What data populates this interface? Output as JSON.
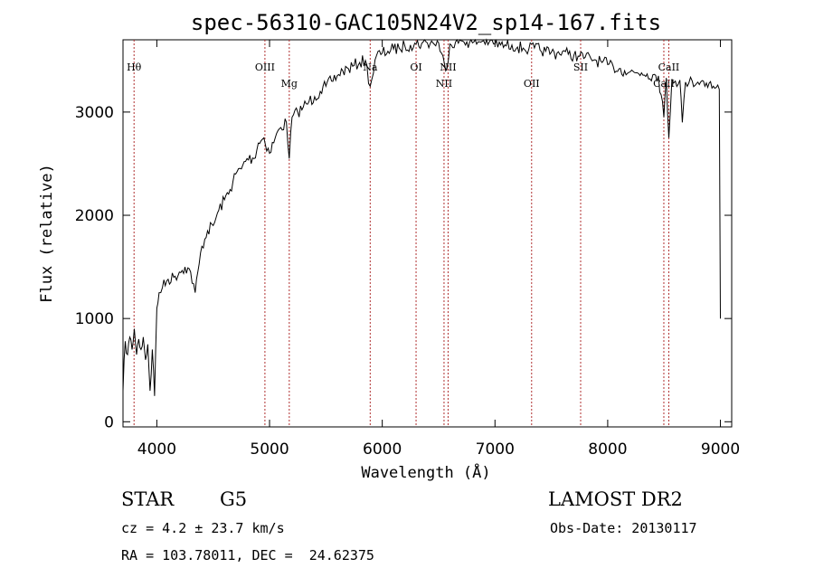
{
  "chart_data": {
    "type": "line",
    "title": "spec-56310-GAC105N24V2_sp14-167.fits",
    "xlabel": "Wavelength (Å)",
    "ylabel": "Flux (relative)",
    "xlim": [
      3700,
      9100
    ],
    "ylim": [
      -50,
      3700
    ],
    "x_ticks": [
      4000,
      5000,
      6000,
      7000,
      8000,
      9000
    ],
    "y_ticks": [
      0,
      1000,
      2000,
      3000
    ],
    "grid": false,
    "series": [
      {
        "color": "#000000",
        "x": [
          3700,
          3720,
          3740,
          3760,
          3780,
          3800,
          3820,
          3840,
          3860,
          3880,
          3900,
          3920,
          3940,
          3960,
          3980,
          4000,
          4020,
          4050,
          4100,
          4150,
          4200,
          4250,
          4300,
          4340,
          4400,
          4450,
          4500,
          4550,
          4600,
          4650,
          4700,
          4750,
          4800,
          4862,
          4900,
          4950,
          5000,
          5050,
          5100,
          5150,
          5175,
          5200,
          5250,
          5300,
          5350,
          5400,
          5450,
          5500,
          5550,
          5600,
          5650,
          5700,
          5750,
          5800,
          5850,
          5893,
          5950,
          6000,
          6050,
          6100,
          6150,
          6200,
          6250,
          6300,
          6350,
          6400,
          6450,
          6500,
          6563,
          6600,
          6650,
          6700,
          6750,
          6800,
          6850,
          6900,
          6950,
          7000,
          7050,
          7100,
          7150,
          7200,
          7250,
          7300,
          7350,
          7400,
          7450,
          7500,
          7550,
          7600,
          7650,
          7700,
          7750,
          7800,
          7850,
          7900,
          7950,
          8000,
          8050,
          8100,
          8150,
          8200,
          8250,
          8300,
          8350,
          8400,
          8450,
          8498,
          8520,
          8542,
          8570,
          8600,
          8640,
          8662,
          8690,
          8720,
          8750,
          8800,
          8850,
          8900,
          8950,
          8990,
          9000
        ],
        "y": [
          300,
          780,
          650,
          820,
          700,
          900,
          650,
          800,
          700,
          820,
          600,
          750,
          300,
          700,
          250,
          1100,
          1250,
          1300,
          1380,
          1400,
          1450,
          1500,
          1450,
          1250,
          1700,
          1850,
          1900,
          2050,
          2150,
          2250,
          2400,
          2450,
          2550,
          2550,
          2700,
          2750,
          2600,
          2750,
          2850,
          2900,
          2550,
          2950,
          3000,
          3050,
          3100,
          3150,
          3200,
          3250,
          3300,
          3350,
          3400,
          3420,
          3450,
          3480,
          3500,
          3250,
          3550,
          3570,
          3590,
          3610,
          3620,
          3640,
          3650,
          3660,
          3665,
          3670,
          3670,
          3670,
          3400,
          3660,
          3680,
          3690,
          3680,
          3670,
          3680,
          3690,
          3680,
          3660,
          3650,
          3640,
          3650,
          3630,
          3620,
          3610,
          3620,
          3600,
          3590,
          3580,
          3570,
          3590,
          3560,
          3550,
          3540,
          3530,
          3520,
          3500,
          3480,
          3460,
          3440,
          3420,
          3400,
          3390,
          3380,
          3380,
          3370,
          3360,
          3350,
          2950,
          3330,
          2750,
          3320,
          3300,
          3310,
          2900,
          3290,
          3280,
          3300,
          3290,
          3300,
          3280,
          3230,
          3220,
          1000
        ]
      }
    ],
    "line_markers": [
      {
        "label": "Hθ",
        "x": 3798,
        "pos": "upper"
      },
      {
        "label": "OIII",
        "x": 4959,
        "pos": "upper"
      },
      {
        "label": "Mg",
        "x": 5175,
        "pos": "lower"
      },
      {
        "label": "Na",
        "x": 5893,
        "pos": "upper"
      },
      {
        "label": "OI",
        "x": 6300,
        "pos": "upper"
      },
      {
        "label": "NII",
        "x": 6548,
        "pos": "lower"
      },
      {
        "label": "NII",
        "x": 6584,
        "pos": "upper"
      },
      {
        "label": "OII",
        "x": 7325,
        "pos": "lower"
      },
      {
        "label": "SII",
        "x": 7760,
        "pos": "upper"
      },
      {
        "label": "CaII",
        "x": 8498,
        "pos": "lower"
      },
      {
        "label": "CaII",
        "x": 8542,
        "pos": "upper"
      }
    ],
    "marker_color": "#b03030"
  },
  "info": {
    "class": "STAR",
    "subclass": "G5",
    "survey": "LAMOST DR2",
    "cz": "cz = 4.2 ± 23.7 km/s",
    "obs_date": "Obs-Date: 20130117",
    "radec": "RA = 103.78011, DEC =  24.62375"
  }
}
